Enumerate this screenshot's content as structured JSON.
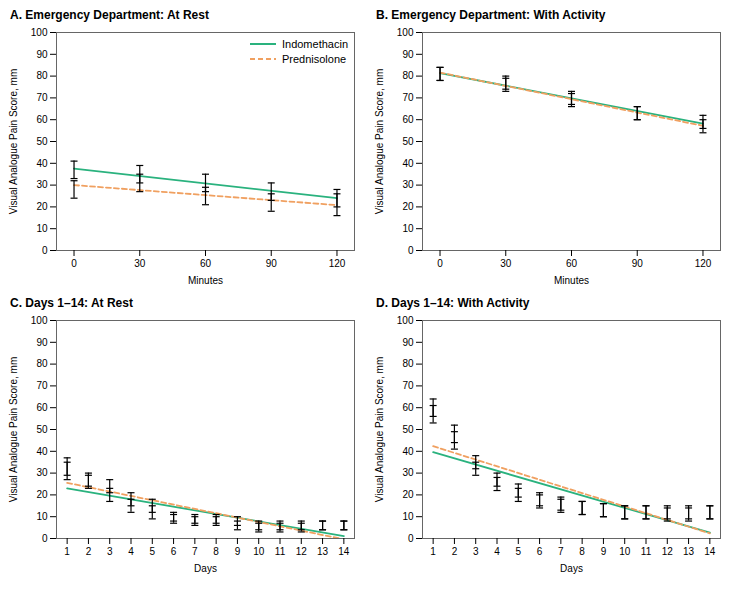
{
  "chart_data": [
    {
      "type": "errorbar",
      "title": "A. Emergency Department: At Rest",
      "x_label": "Minutes",
      "y_label": "Visual Analogue Pain Score, mm",
      "x": [
        0,
        30,
        60,
        90,
        120
      ],
      "xlim": [
        -8,
        128
      ],
      "xticks": [
        0,
        30,
        60,
        90,
        120
      ],
      "ylim": [
        0,
        100
      ],
      "yticks": [
        0,
        10,
        20,
        30,
        40,
        50,
        60,
        70,
        80,
        90,
        100
      ],
      "grid": false,
      "legend": "upper right",
      "series": [
        {
          "name": "Indomethacin",
          "color": "#2ab27e",
          "line_style": "solid",
          "values": [
            37,
            35,
            31,
            27,
            24
          ],
          "errors": [
            4,
            4,
            4,
            4,
            4
          ],
          "fit": [
            37.6,
            24
          ]
        },
        {
          "name": "Prednisolone",
          "color": "#f0a060",
          "line_style": "dashed",
          "values": [
            28,
            31,
            25,
            22,
            21
          ],
          "errors": [
            4,
            4,
            4,
            4,
            5
          ],
          "fit": [
            30,
            20.8
          ]
        }
      ]
    },
    {
      "type": "errorbar",
      "title": "B. Emergency Department: With Activity",
      "x_label": "Minutes",
      "y_label": "Visual Analogue Pain Score, mm",
      "x": [
        0,
        30,
        60,
        90,
        120
      ],
      "xlim": [
        -8,
        128
      ],
      "xticks": [
        0,
        30,
        60,
        90,
        120
      ],
      "ylim": [
        0,
        100
      ],
      "yticks": [
        0,
        10,
        20,
        30,
        40,
        50,
        60,
        70,
        80,
        90,
        100
      ],
      "grid": false,
      "legend": false,
      "series": [
        {
          "name": "Indomethacin",
          "color": "#2ab27e",
          "line_style": "solid",
          "values": [
            81,
            77,
            69,
            63,
            59
          ],
          "errors": [
            3,
            3,
            3,
            3,
            3
          ],
          "fit": [
            81.4,
            58.2
          ]
        },
        {
          "name": "Prednisolone",
          "color": "#f0a060",
          "line_style": "dashed",
          "values": [
            81,
            76,
            70,
            63,
            57
          ],
          "errors": [
            3,
            3,
            3,
            3,
            3
          ],
          "fit": [
            81.6,
            57.2
          ]
        }
      ]
    },
    {
      "type": "errorbar",
      "title": "C. Days 1–14: At Rest",
      "x_label": "Days",
      "y_label": "Visual Analogue Pain Score, mm",
      "x": [
        1,
        2,
        3,
        4,
        5,
        6,
        7,
        8,
        9,
        10,
        11,
        12,
        13,
        14
      ],
      "xlim": [
        0.5,
        14.5
      ],
      "xticks": [
        1,
        2,
        3,
        4,
        5,
        6,
        7,
        8,
        9,
        10,
        11,
        12,
        13,
        14
      ],
      "ylim": [
        0,
        100
      ],
      "yticks": [
        0,
        10,
        20,
        30,
        40,
        50,
        60,
        70,
        80,
        90,
        100
      ],
      "grid": false,
      "legend": false,
      "series": [
        {
          "name": "Indomethacin",
          "color": "#2ab27e",
          "line_style": "solid",
          "values": [
            31,
            26,
            20,
            15,
            12,
            9,
            9,
            9,
            8,
            6,
            6,
            6,
            6,
            6
          ],
          "errors": [
            4,
            3,
            3,
            3,
            3,
            2,
            2,
            2,
            2,
            2,
            2,
            2,
            2,
            2
          ],
          "fit": [
            23.0286,
            1.1143
          ]
        },
        {
          "name": "Prednisolone",
          "color": "#f0a060",
          "line_style": "dashed",
          "values": [
            33,
            27,
            24,
            18,
            15,
            10,
            8,
            8,
            6,
            5,
            5,
            5,
            6,
            6
          ],
          "errors": [
            4,
            3,
            3,
            3,
            3,
            2,
            2,
            2,
            2,
            2,
            2,
            2,
            2,
            2
          ],
          "fit": [
            25.5143,
            -0.3714
          ]
        }
      ]
    },
    {
      "type": "errorbar",
      "title": "D. Days 1–14: With Activity",
      "x_label": "Days",
      "y_label": "Visual Analogue Pain Score, mm",
      "x": [
        1,
        2,
        3,
        4,
        5,
        6,
        7,
        8,
        9,
        10,
        11,
        12,
        13,
        14
      ],
      "xlim": [
        0.5,
        14.5
      ],
      "xticks": [
        1,
        2,
        3,
        4,
        5,
        6,
        7,
        8,
        9,
        10,
        11,
        12,
        13,
        14
      ],
      "ylim": [
        0,
        100
      ],
      "yticks": [
        0,
        10,
        20,
        30,
        40,
        50,
        60,
        70,
        80,
        90,
        100
      ],
      "grid": false,
      "legend": false,
      "series": [
        {
          "name": "Indomethacin",
          "color": "#2ab27e",
          "line_style": "solid",
          "values": [
            57,
            45,
            32,
            25,
            20,
            17,
            15,
            14,
            13,
            12,
            12,
            11,
            11,
            12
          ],
          "errors": [
            4,
            4,
            3,
            3,
            3,
            3,
            3,
            3,
            3,
            3,
            3,
            3,
            3,
            3
          ],
          "fit": [
            39.6,
            2.6857
          ]
        },
        {
          "name": "Prednisolone",
          "color": "#f0a060",
          "line_style": "dashed",
          "values": [
            60,
            48,
            35,
            27,
            22,
            18,
            16,
            14,
            13,
            12,
            12,
            12,
            12,
            12
          ],
          "errors": [
            4,
            4,
            3,
            3,
            3,
            3,
            3,
            3,
            3,
            3,
            3,
            3,
            3,
            3
          ],
          "fit": [
            42.3429,
            2.3714
          ]
        }
      ]
    }
  ]
}
